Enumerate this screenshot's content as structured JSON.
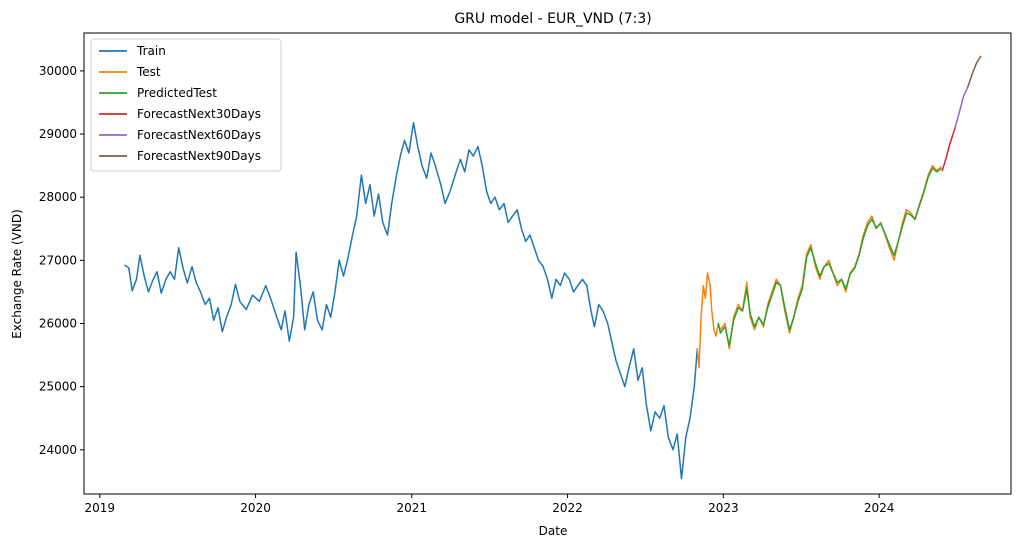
{
  "chart_data": {
    "type": "line",
    "title": "GRU model - EUR_VND (7:3)",
    "xlabel": "Date",
    "ylabel": "Exchange Rate (VND)",
    "xlim": [
      "2018-11-25",
      "2024-11-05"
    ],
    "ylim": [
      23300,
      30600
    ],
    "x_ticks": [
      "2019",
      "2020",
      "2021",
      "2022",
      "2023",
      "2024"
    ],
    "x_tick_dates": [
      "2019-01-01",
      "2020-01-01",
      "2021-01-01",
      "2022-01-01",
      "2023-01-01",
      "2024-01-01"
    ],
    "y_ticks": [
      24000,
      25000,
      26000,
      27000,
      28000,
      29000,
      30000
    ],
    "grid": false,
    "legend_position": "top-left",
    "series": [
      {
        "name": "Train",
        "color": "#1f77b4",
        "points": [
          [
            "2019-03-01",
            26920
          ],
          [
            "2019-03-10",
            26880
          ],
          [
            "2019-03-18",
            26520
          ],
          [
            "2019-03-28",
            26700
          ],
          [
            "2019-04-05",
            27080
          ],
          [
            "2019-04-15",
            26750
          ],
          [
            "2019-04-25",
            26500
          ],
          [
            "2019-05-05",
            26680
          ],
          [
            "2019-05-15",
            26820
          ],
          [
            "2019-05-25",
            26480
          ],
          [
            "2019-06-05",
            26700
          ],
          [
            "2019-06-15",
            26820
          ],
          [
            "2019-06-25",
            26700
          ],
          [
            "2019-07-05",
            27200
          ],
          [
            "2019-07-15",
            26880
          ],
          [
            "2019-07-25",
            26640
          ],
          [
            "2019-08-05",
            26900
          ],
          [
            "2019-08-15",
            26650
          ],
          [
            "2019-08-25",
            26500
          ],
          [
            "2019-09-05",
            26300
          ],
          [
            "2019-09-15",
            26400
          ],
          [
            "2019-09-25",
            26050
          ],
          [
            "2019-10-05",
            26250
          ],
          [
            "2019-10-15",
            25870
          ],
          [
            "2019-10-25",
            26100
          ],
          [
            "2019-11-05",
            26300
          ],
          [
            "2019-11-15",
            26620
          ],
          [
            "2019-11-25",
            26350
          ],
          [
            "2019-12-10",
            26220
          ],
          [
            "2019-12-25",
            26450
          ],
          [
            "2020-01-10",
            26350
          ],
          [
            "2020-01-25",
            26600
          ],
          [
            "2020-02-05",
            26400
          ],
          [
            "2020-02-20",
            26100
          ],
          [
            "2020-03-01",
            25900
          ],
          [
            "2020-03-10",
            26200
          ],
          [
            "2020-03-20",
            25720
          ],
          [
            "2020-03-30",
            26100
          ],
          [
            "2020-04-05",
            27130
          ],
          [
            "2020-04-15",
            26600
          ],
          [
            "2020-04-25",
            25900
          ],
          [
            "2020-05-05",
            26300
          ],
          [
            "2020-05-15",
            26500
          ],
          [
            "2020-05-25",
            26050
          ],
          [
            "2020-06-05",
            25900
          ],
          [
            "2020-06-15",
            26300
          ],
          [
            "2020-06-25",
            26100
          ],
          [
            "2020-07-05",
            26500
          ],
          [
            "2020-07-15",
            27000
          ],
          [
            "2020-07-25",
            26750
          ],
          [
            "2020-08-05",
            27050
          ],
          [
            "2020-08-15",
            27400
          ],
          [
            "2020-08-25",
            27700
          ],
          [
            "2020-09-05",
            28350
          ],
          [
            "2020-09-15",
            27900
          ],
          [
            "2020-09-25",
            28200
          ],
          [
            "2020-10-05",
            27700
          ],
          [
            "2020-10-15",
            28050
          ],
          [
            "2020-10-25",
            27600
          ],
          [
            "2020-11-05",
            27400
          ],
          [
            "2020-11-15",
            27900
          ],
          [
            "2020-11-25",
            28300
          ],
          [
            "2020-12-05",
            28650
          ],
          [
            "2020-12-15",
            28900
          ],
          [
            "2020-12-25",
            28700
          ],
          [
            "2021-01-05",
            29180
          ],
          [
            "2021-01-15",
            28800
          ],
          [
            "2021-01-25",
            28500
          ],
          [
            "2021-02-05",
            28300
          ],
          [
            "2021-02-15",
            28700
          ],
          [
            "2021-02-25",
            28500
          ],
          [
            "2021-03-10",
            28200
          ],
          [
            "2021-03-20",
            27900
          ],
          [
            "2021-04-01",
            28100
          ],
          [
            "2021-04-15",
            28400
          ],
          [
            "2021-04-25",
            28600
          ],
          [
            "2021-05-05",
            28400
          ],
          [
            "2021-05-15",
            28750
          ],
          [
            "2021-05-25",
            28650
          ],
          [
            "2021-06-05",
            28800
          ],
          [
            "2021-06-15",
            28500
          ],
          [
            "2021-06-25",
            28100
          ],
          [
            "2021-07-05",
            27900
          ],
          [
            "2021-07-15",
            28000
          ],
          [
            "2021-07-25",
            27800
          ],
          [
            "2021-08-05",
            27900
          ],
          [
            "2021-08-15",
            27600
          ],
          [
            "2021-08-25",
            27700
          ],
          [
            "2021-09-05",
            27800
          ],
          [
            "2021-09-15",
            27500
          ],
          [
            "2021-09-25",
            27300
          ],
          [
            "2021-10-05",
            27400
          ],
          [
            "2021-10-15",
            27200
          ],
          [
            "2021-10-25",
            27000
          ],
          [
            "2021-11-05",
            26900
          ],
          [
            "2021-11-15",
            26700
          ],
          [
            "2021-11-25",
            26400
          ],
          [
            "2021-12-05",
            26700
          ],
          [
            "2021-12-15",
            26600
          ],
          [
            "2021-12-25",
            26800
          ],
          [
            "2022-01-05",
            26700
          ],
          [
            "2022-01-15",
            26500
          ],
          [
            "2022-01-25",
            26600
          ],
          [
            "2022-02-05",
            26700
          ],
          [
            "2022-02-15",
            26600
          ],
          [
            "2022-02-25",
            26200
          ],
          [
            "2022-03-05",
            25950
          ],
          [
            "2022-03-15",
            26300
          ],
          [
            "2022-03-25",
            26200
          ],
          [
            "2022-04-05",
            26000
          ],
          [
            "2022-04-15",
            25700
          ],
          [
            "2022-04-25",
            25400
          ],
          [
            "2022-05-05",
            25200
          ],
          [
            "2022-05-15",
            25000
          ],
          [
            "2022-05-25",
            25300
          ],
          [
            "2022-06-05",
            25600
          ],
          [
            "2022-06-15",
            25100
          ],
          [
            "2022-06-25",
            25300
          ],
          [
            "2022-07-05",
            24700
          ],
          [
            "2022-07-15",
            24300
          ],
          [
            "2022-07-25",
            24600
          ],
          [
            "2022-08-05",
            24500
          ],
          [
            "2022-08-15",
            24700
          ],
          [
            "2022-08-25",
            24200
          ],
          [
            "2022-09-05",
            24000
          ],
          [
            "2022-09-15",
            24250
          ],
          [
            "2022-09-25",
            23540
          ],
          [
            "2022-10-05",
            24200
          ],
          [
            "2022-10-15",
            24500
          ],
          [
            "2022-10-25",
            25000
          ],
          [
            "2022-11-01",
            25600
          ]
        ]
      },
      {
        "name": "Test",
        "color": "#ff7f0e",
        "points": [
          [
            "2022-11-01",
            25600
          ],
          [
            "2022-11-05",
            25300
          ],
          [
            "2022-11-10",
            26100
          ],
          [
            "2022-11-15",
            26600
          ],
          [
            "2022-11-20",
            26400
          ],
          [
            "2022-11-25",
            26800
          ],
          [
            "2022-12-01",
            26600
          ],
          [
            "2022-12-05",
            26200
          ],
          [
            "2022-12-10",
            25900
          ],
          [
            "2022-12-15",
            25800
          ],
          [
            "2022-12-20",
            26000
          ],
          [
            "2022-12-25",
            25900
          ],
          [
            "2023-01-05",
            26000
          ],
          [
            "2023-01-15",
            25600
          ],
          [
            "2023-01-25",
            26100
          ],
          [
            "2023-02-05",
            26300
          ],
          [
            "2023-02-15",
            26200
          ],
          [
            "2023-02-25",
            26650
          ],
          [
            "2023-03-05",
            26100
          ],
          [
            "2023-03-15",
            25900
          ],
          [
            "2023-03-25",
            26100
          ],
          [
            "2023-04-05",
            25950
          ],
          [
            "2023-04-15",
            26300
          ],
          [
            "2023-04-25",
            26500
          ],
          [
            "2023-05-05",
            26700
          ],
          [
            "2023-05-15",
            26600
          ],
          [
            "2023-05-25",
            26200
          ],
          [
            "2023-06-05",
            25850
          ],
          [
            "2023-06-15",
            26100
          ],
          [
            "2023-06-25",
            26400
          ],
          [
            "2023-07-05",
            26600
          ],
          [
            "2023-07-15",
            27100
          ],
          [
            "2023-07-25",
            27250
          ],
          [
            "2023-08-05",
            26900
          ],
          [
            "2023-08-15",
            26700
          ],
          [
            "2023-08-25",
            26900
          ],
          [
            "2023-09-05",
            27000
          ],
          [
            "2023-09-15",
            26800
          ],
          [
            "2023-09-25",
            26600
          ],
          [
            "2023-10-05",
            26700
          ],
          [
            "2023-10-15",
            26500
          ],
          [
            "2023-10-25",
            26800
          ],
          [
            "2023-11-05",
            26900
          ],
          [
            "2023-11-15",
            27100
          ],
          [
            "2023-11-25",
            27400
          ],
          [
            "2023-12-05",
            27600
          ],
          [
            "2023-12-15",
            27700
          ],
          [
            "2023-12-25",
            27500
          ],
          [
            "2024-01-05",
            27600
          ],
          [
            "2024-01-15",
            27400
          ],
          [
            "2024-01-25",
            27200
          ],
          [
            "2024-02-05",
            27000
          ],
          [
            "2024-02-15",
            27300
          ],
          [
            "2024-02-25",
            27600
          ],
          [
            "2024-03-05",
            27800
          ],
          [
            "2024-03-15",
            27750
          ],
          [
            "2024-03-25",
            27650
          ],
          [
            "2024-04-05",
            27900
          ],
          [
            "2024-04-15",
            28100
          ],
          [
            "2024-04-25",
            28350
          ],
          [
            "2024-05-05",
            28500
          ],
          [
            "2024-05-15",
            28420
          ],
          [
            "2024-05-25",
            28480
          ]
        ]
      },
      {
        "name": "PredictedTest",
        "color": "#2ca02c",
        "points": [
          [
            "2022-12-20",
            26000
          ],
          [
            "2022-12-25",
            25850
          ],
          [
            "2023-01-05",
            25950
          ],
          [
            "2023-01-15",
            25650
          ],
          [
            "2023-01-25",
            26050
          ],
          [
            "2023-02-05",
            26250
          ],
          [
            "2023-02-15",
            26200
          ],
          [
            "2023-02-25",
            26550
          ],
          [
            "2023-03-05",
            26150
          ],
          [
            "2023-03-15",
            25950
          ],
          [
            "2023-03-25",
            26100
          ],
          [
            "2023-04-05",
            25980
          ],
          [
            "2023-04-15",
            26250
          ],
          [
            "2023-04-25",
            26450
          ],
          [
            "2023-05-05",
            26650
          ],
          [
            "2023-05-15",
            26600
          ],
          [
            "2023-05-25",
            26250
          ],
          [
            "2023-06-05",
            25900
          ],
          [
            "2023-06-15",
            26100
          ],
          [
            "2023-06-25",
            26350
          ],
          [
            "2023-07-05",
            26550
          ],
          [
            "2023-07-15",
            27050
          ],
          [
            "2023-07-25",
            27200
          ],
          [
            "2023-08-05",
            26950
          ],
          [
            "2023-08-15",
            26750
          ],
          [
            "2023-08-25",
            26900
          ],
          [
            "2023-09-05",
            26950
          ],
          [
            "2023-09-15",
            26800
          ],
          [
            "2023-09-25",
            26650
          ],
          [
            "2023-10-05",
            26700
          ],
          [
            "2023-10-15",
            26550
          ],
          [
            "2023-10-25",
            26780
          ],
          [
            "2023-11-05",
            26880
          ],
          [
            "2023-11-15",
            27080
          ],
          [
            "2023-11-25",
            27350
          ],
          [
            "2023-12-05",
            27550
          ],
          [
            "2023-12-15",
            27650
          ],
          [
            "2023-12-25",
            27520
          ],
          [
            "2024-01-05",
            27580
          ],
          [
            "2024-01-15",
            27420
          ],
          [
            "2024-01-25",
            27250
          ],
          [
            "2024-02-05",
            27080
          ],
          [
            "2024-02-15",
            27300
          ],
          [
            "2024-02-25",
            27550
          ],
          [
            "2024-03-05",
            27750
          ],
          [
            "2024-03-15",
            27720
          ],
          [
            "2024-03-25",
            27650
          ],
          [
            "2024-04-05",
            27880
          ],
          [
            "2024-04-15",
            28080
          ],
          [
            "2024-04-25",
            28320
          ],
          [
            "2024-05-05",
            28460
          ],
          [
            "2024-05-15",
            28400
          ],
          [
            "2024-05-25",
            28450
          ]
        ]
      },
      {
        "name": "ForecastNext30Days",
        "color": "#d62728",
        "points": [
          [
            "2024-05-28",
            28420
          ],
          [
            "2024-06-05",
            28600
          ],
          [
            "2024-06-15",
            28850
          ],
          [
            "2024-06-27",
            29100
          ]
        ]
      },
      {
        "name": "ForecastNext60Days",
        "color": "#9467bd",
        "points": [
          [
            "2024-06-27",
            29100
          ],
          [
            "2024-07-07",
            29350
          ],
          [
            "2024-07-17",
            29600
          ],
          [
            "2024-07-27",
            29750
          ]
        ]
      },
      {
        "name": "ForecastNext90Days",
        "color": "#8c564b",
        "points": [
          [
            "2024-07-27",
            29750
          ],
          [
            "2024-08-06",
            29950
          ],
          [
            "2024-08-16",
            30120
          ],
          [
            "2024-08-26",
            30230
          ]
        ]
      }
    ]
  }
}
